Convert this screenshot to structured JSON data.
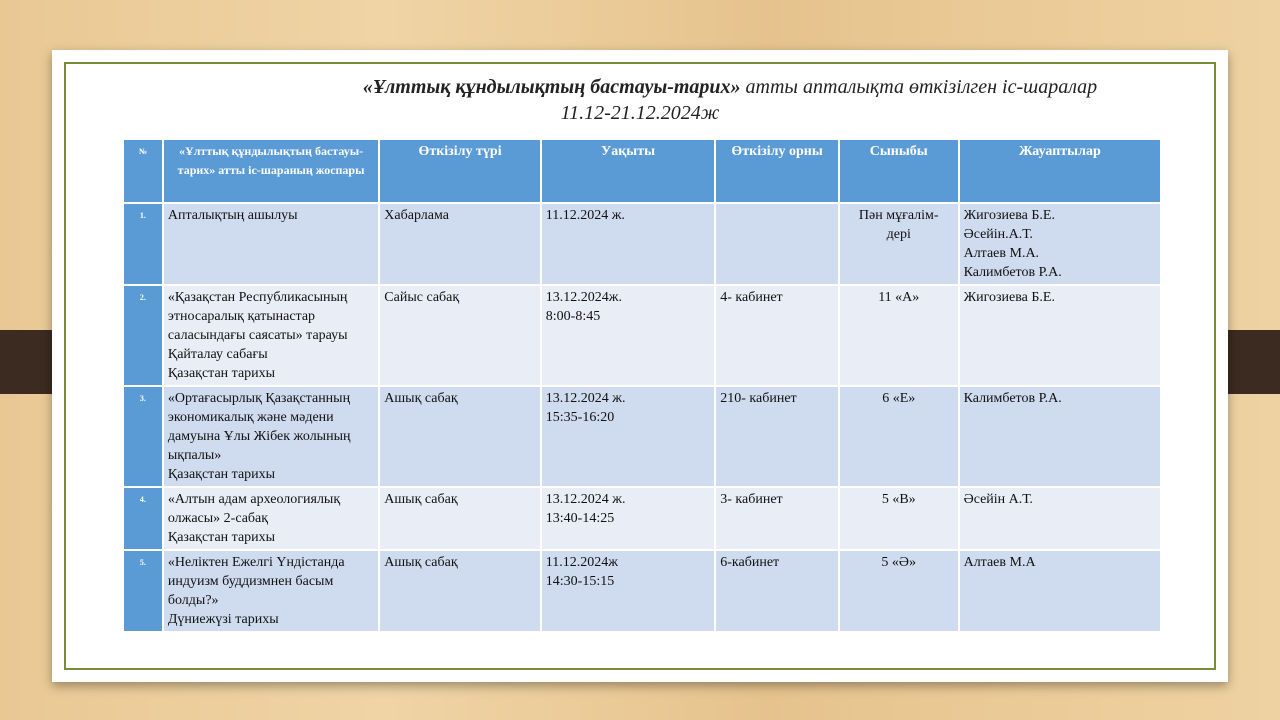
{
  "title": {
    "bold": "«Ұлттық құндылықтың бастауы-тарих»",
    "rest": " атты  апталықта өткізілген іс-шаралар",
    "dates": "11.12-21.12.2024ж"
  },
  "headers": [
    "№",
    "«Ұлттық құндылықтың бастауы-тарих» атты іс-шараның жоспары",
    "Өткізілу түрі",
    "Уақыты",
    "Өткізілу орны",
    "Сыныбы",
    "Жауаптылар"
  ],
  "rows": [
    {
      "n": "1.",
      "plan": "Апталықтың ашылуы",
      "type": "Хабарлама",
      "time": "11.12.2024 ж.",
      "place": "",
      "class": "Пән мұғалім-\nдері",
      "resp": "Жигозиева Б.Е.\nӘсейін.А.Т.\nАлтаев М.А.\nКалимбетов Р.А."
    },
    {
      "n": "2.",
      "plan": "«Қазақстан Республикасының этносаралық қатынастар саласындағы саясаты» тарауы\nҚайталау сабағы\nҚазақстан тарихы",
      "type": "Сайыс сабақ",
      "time": "13.12.2024ж.\n8:00-8:45",
      "place": "4- кабинет",
      "class": "11 «А»",
      "resp": "Жигозиева Б.Е."
    },
    {
      "n": "3.",
      "plan": "«Ортағасырлық Қазақстанның экономикалық және мәдени дамуына Ұлы Жібек жолының ықпалы»\nҚазақстан тарихы",
      "type": "Ашық сабақ",
      "time": "13.12.2024 ж.\n15:35-16:20",
      "place": "210- кабинет",
      "class": "6 «Е»",
      "resp": "Калимбетов Р.А."
    },
    {
      "n": "4.",
      "plan": "«Алтын адам археологиялық олжасы» 2-сабақ\nҚазақстан тарихы",
      "type": "Ашық сабақ",
      "time": "13.12.2024 ж.\n13:40-14:25",
      "place": "3- кабинет",
      "class": "5 «В»",
      "resp": "Әсейін А.Т."
    },
    {
      "n": "5.",
      "plan": "«Неліктен Ежелгі Үндістанда индуизм буддизмнен басым болды?»\nДүниежүзі тарихы",
      "type": "Ашық сабақ",
      "time": "11.12.2024ж\n14:30-15:15",
      "place": "6-кабинет",
      "class": "5 «Ә»",
      "resp": "Алтаев М.А"
    }
  ]
}
